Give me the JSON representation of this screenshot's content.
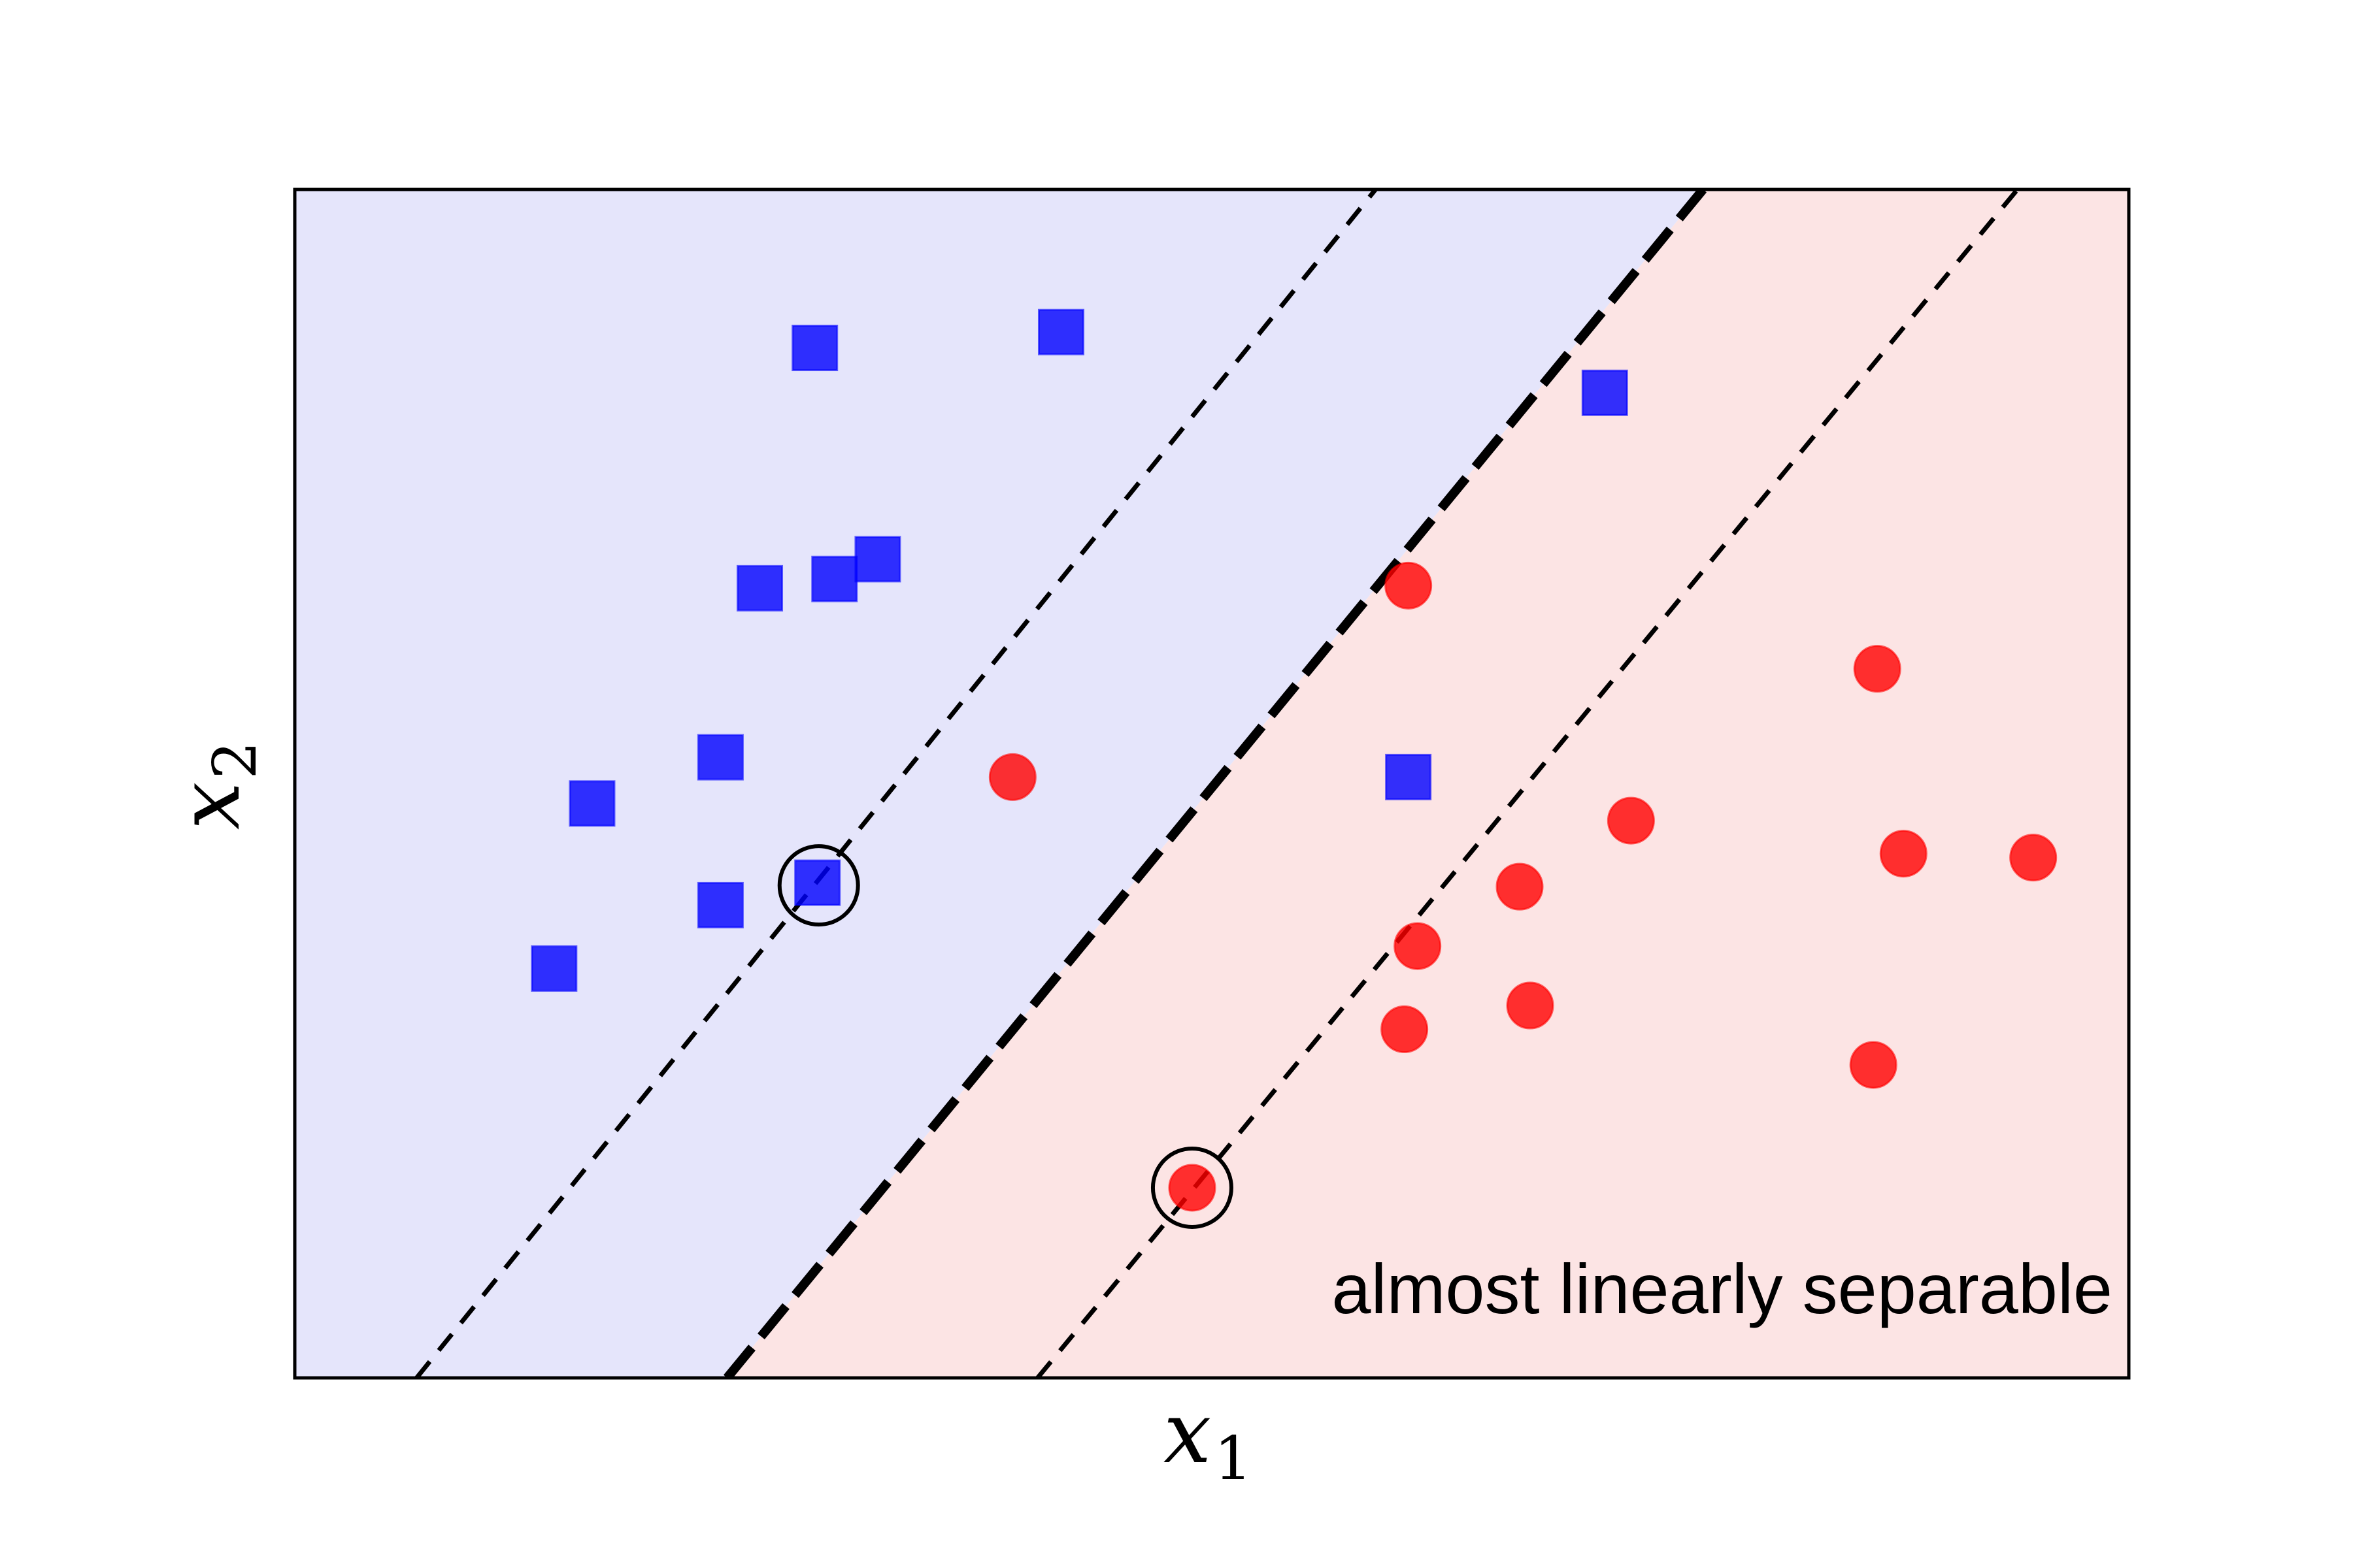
{
  "chart_data": {
    "type": "scatter",
    "title": "",
    "xlabel": "x",
    "xlabel_sub": "1",
    "ylabel": "x",
    "ylabel_sub": "2",
    "annotation": "almost linearly separable",
    "xlim": [
      0,
      14
    ],
    "ylim": [
      0,
      9
    ],
    "grid": false,
    "ticks": false,
    "legend": "none",
    "colors": {
      "class_square": "#0000ff",
      "class_circle": "#ff0000",
      "region_square": "#e5e5fb",
      "region_circle": "#fce4e4",
      "lines": "#000000"
    },
    "regions": [
      {
        "class": "square",
        "side": "upper-left"
      },
      {
        "class": "circle",
        "side": "lower-right"
      }
    ],
    "lines": [
      {
        "role": "decision_boundary",
        "style": "dashed-thick",
        "points": [
          [
            3.3,
            0
          ],
          [
            10.75,
            9
          ]
        ]
      },
      {
        "role": "margin",
        "style": "dashed",
        "points": [
          [
            0.93,
            0
          ],
          [
            8.25,
            9
          ]
        ]
      },
      {
        "role": "margin",
        "style": "dashed",
        "points": [
          [
            5.67,
            0
          ],
          [
            13.15,
            9
          ]
        ]
      }
    ],
    "series": [
      {
        "marker": "square",
        "points": [
          [
            3.97,
            7.8
          ],
          [
            5.85,
            7.92
          ],
          [
            10.0,
            7.46
          ],
          [
            3.55,
            5.98
          ],
          [
            4.12,
            6.05
          ],
          [
            4.45,
            6.2
          ],
          [
            3.25,
            4.7
          ],
          [
            2.27,
            4.35
          ],
          [
            8.5,
            4.55
          ],
          [
            3.99,
            3.75
          ],
          [
            3.25,
            3.58
          ],
          [
            1.98,
            3.1
          ]
        ]
      },
      {
        "marker": "circle",
        "points": [
          [
            8.5,
            6.0
          ],
          [
            12.08,
            5.37
          ],
          [
            5.48,
            4.55
          ],
          [
            10.2,
            4.22
          ],
          [
            12.28,
            3.97
          ],
          [
            13.27,
            3.94
          ],
          [
            9.35,
            3.72
          ],
          [
            8.57,
            3.27
          ],
          [
            9.43,
            2.82
          ],
          [
            8.47,
            2.64
          ],
          [
            12.05,
            2.37
          ],
          [
            6.85,
            1.44
          ]
        ]
      }
    ],
    "support_vectors": [
      [
        4.0,
        3.73
      ],
      [
        6.85,
        1.44
      ]
    ]
  }
}
